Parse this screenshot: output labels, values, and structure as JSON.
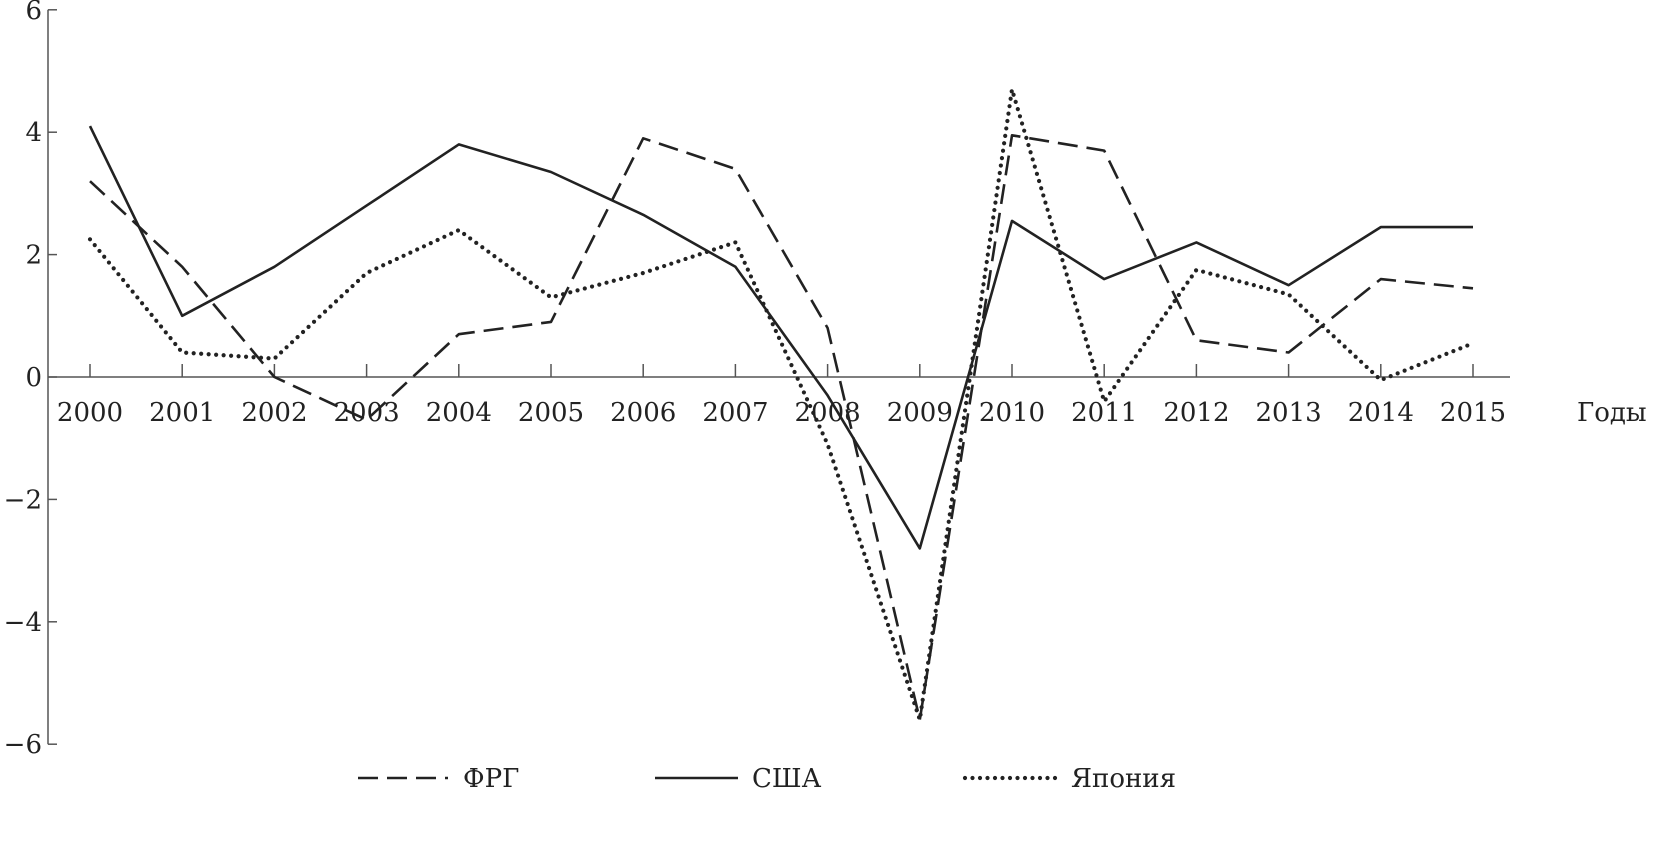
{
  "chart_data": {
    "type": "line",
    "title": "",
    "xlabel": "Годы",
    "ylabel": "",
    "ylim": [
      -6,
      6
    ],
    "yticks": [
      6,
      4,
      2,
      0,
      -2,
      -4,
      -6
    ],
    "ytick_labels": [
      "6",
      "4",
      "2",
      "0",
      "−2",
      "−4",
      "−6"
    ],
    "categories": [
      "2000",
      "2001",
      "2002",
      "2003",
      "2004",
      "2005",
      "2006",
      "2007",
      "2008",
      "2009",
      "2010",
      "2011",
      "2012",
      "2013",
      "2014",
      "2015"
    ],
    "grid": false,
    "legend_position": "bottom",
    "series": [
      {
        "name": "ФРГ",
        "style": "dashed",
        "color": "#222222",
        "values": [
          3.2,
          1.8,
          0.0,
          -0.7,
          0.7,
          0.9,
          3.9,
          3.4,
          0.8,
          -5.6,
          3.95,
          3.7,
          0.6,
          0.4,
          1.6,
          1.45
        ]
      },
      {
        "name": "США",
        "style": "solid",
        "color": "#222222",
        "values": [
          4.1,
          1.0,
          1.8,
          2.8,
          3.8,
          3.35,
          2.65,
          1.8,
          -0.3,
          -2.8,
          2.55,
          1.6,
          2.2,
          1.5,
          2.45,
          2.45
        ]
      },
      {
        "name": "Япония",
        "style": "dotted",
        "color": "#222222",
        "values": [
          2.25,
          0.4,
          0.3,
          1.7,
          2.4,
          1.3,
          1.7,
          2.2,
          -1.1,
          -5.6,
          4.7,
          -0.4,
          1.75,
          1.35,
          -0.05,
          0.55
        ]
      }
    ]
  }
}
